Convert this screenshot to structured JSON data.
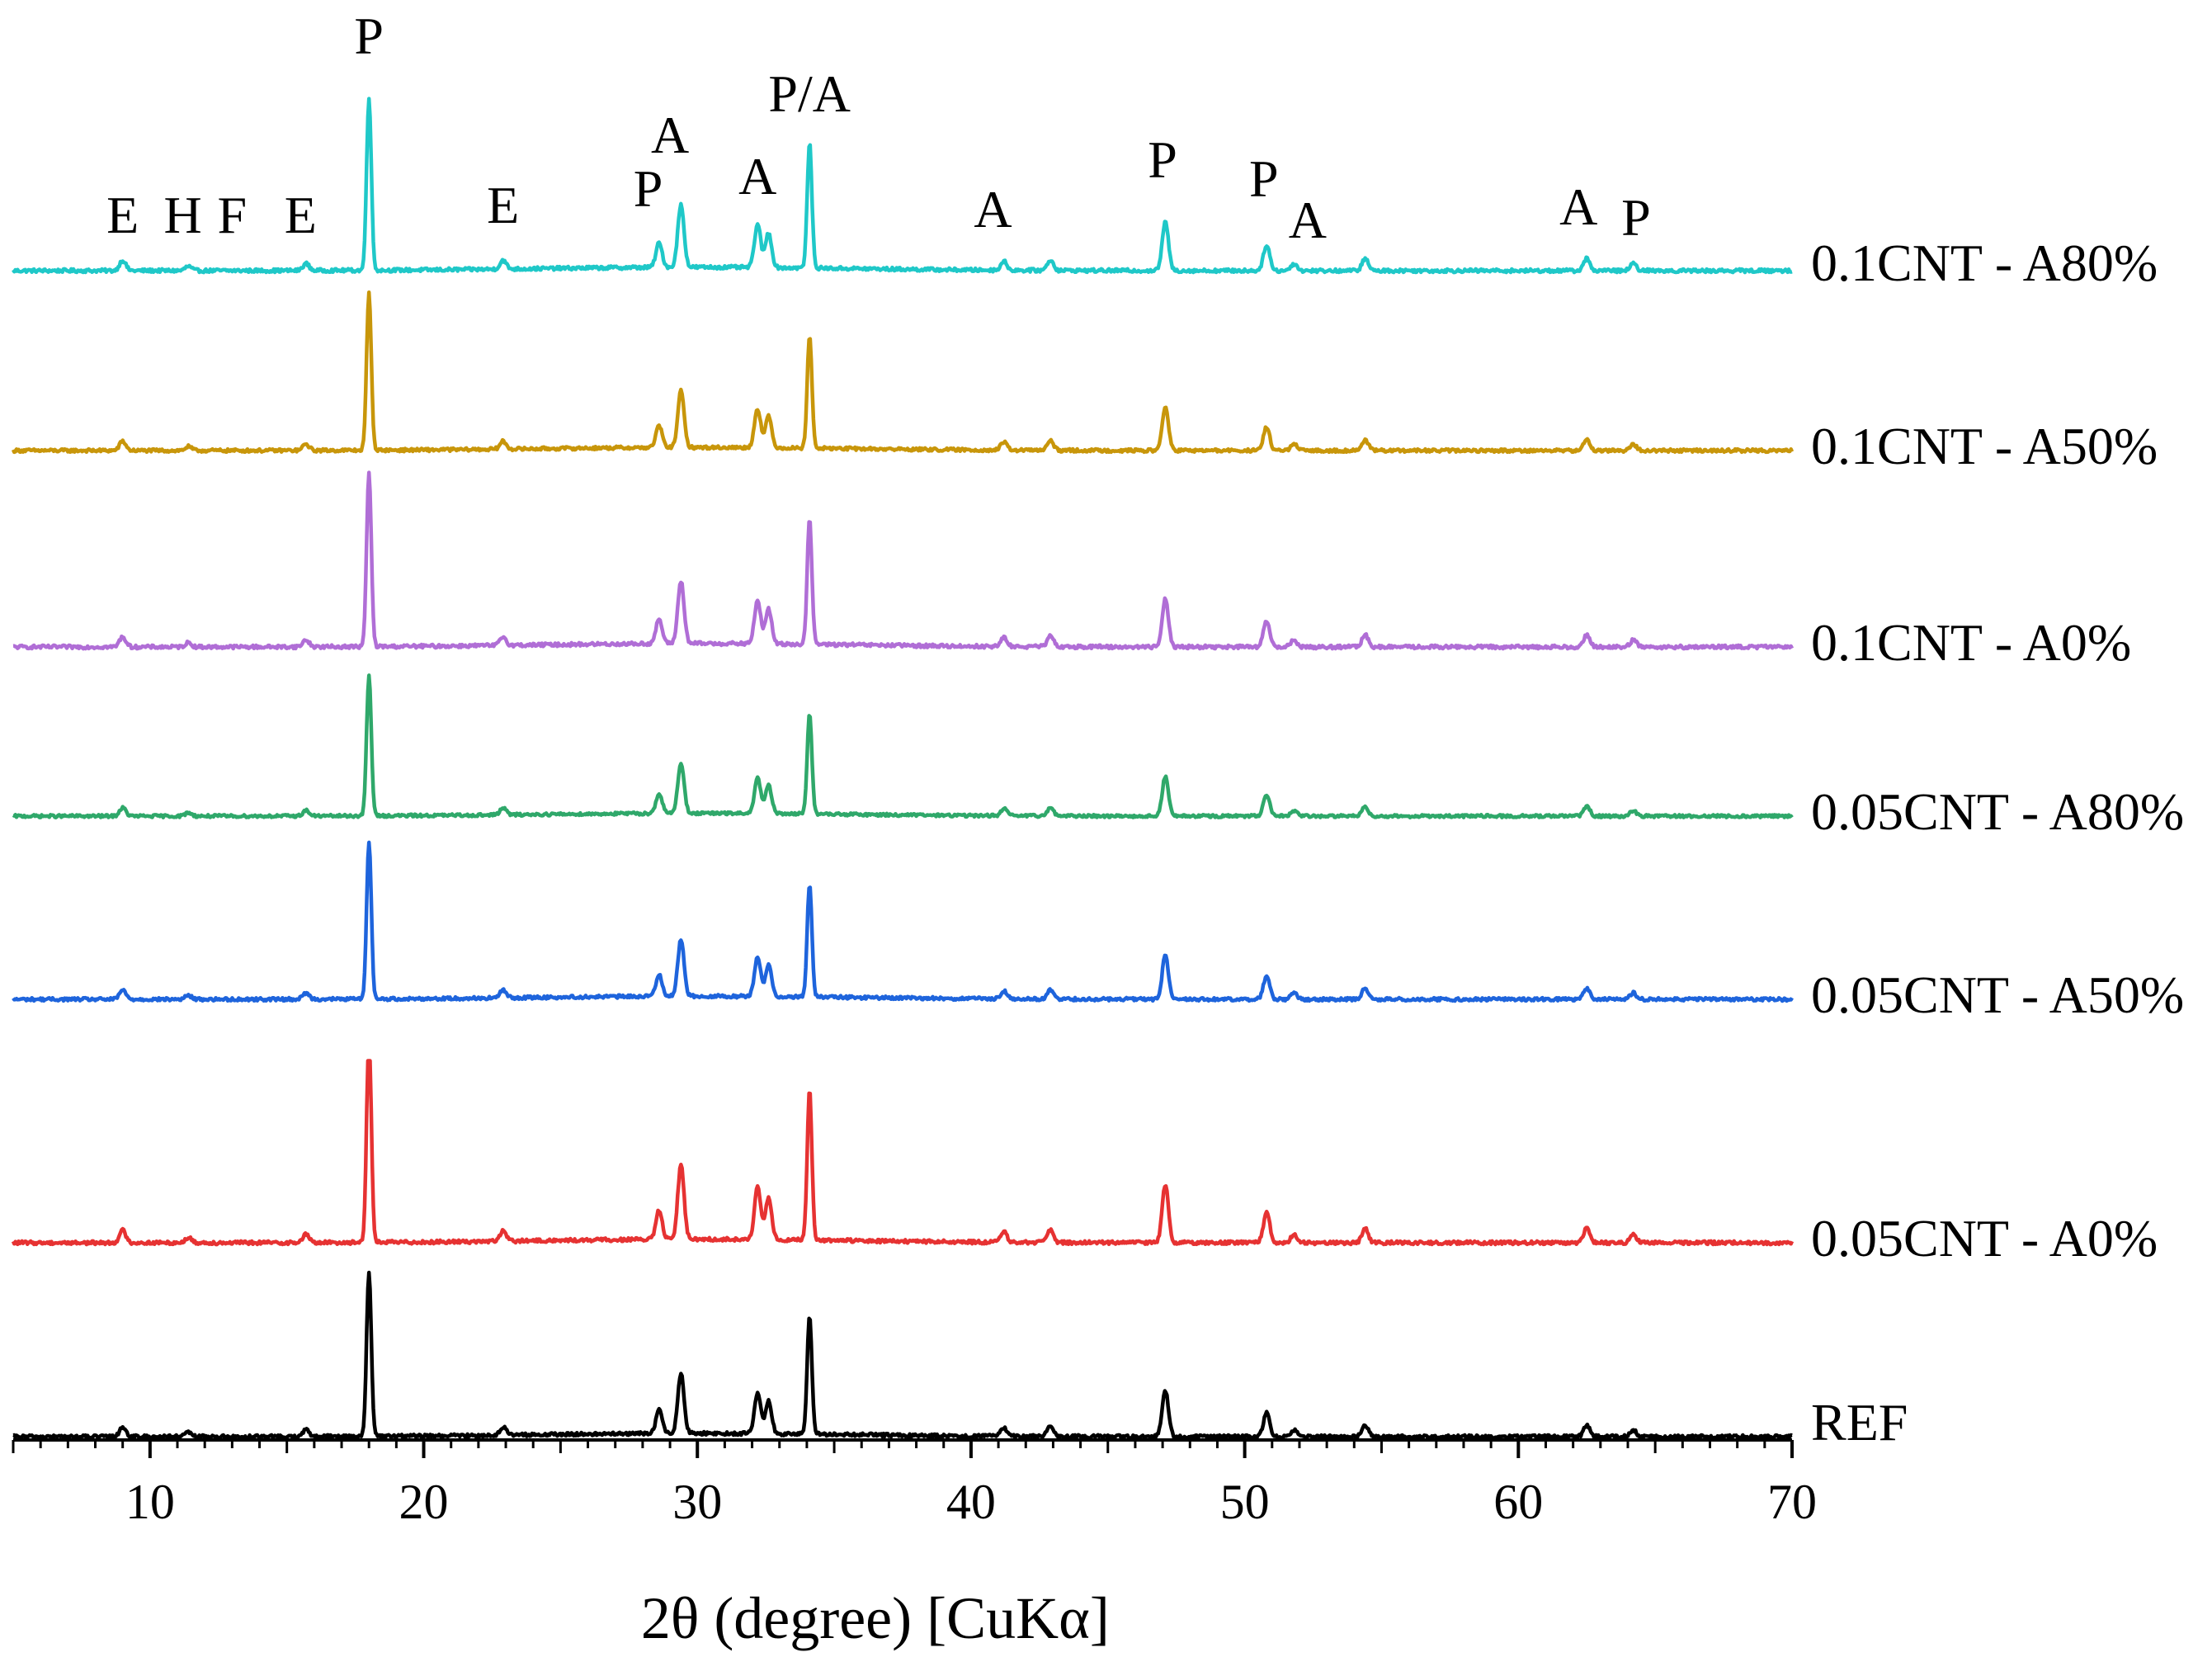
{
  "chart_data": {
    "type": "line",
    "title": "",
    "xlabel": "2θ (degree) [CuKα]",
    "ylabel": "",
    "xlim": [
      5,
      70
    ],
    "xticks": [
      10,
      20,
      30,
      40,
      50,
      60,
      70
    ],
    "grid": false,
    "legend": "inline labels at right end of each trace",
    "colors": {
      "0.1CNT - A80%": "#1fc8c8",
      "0.1CNT - A50%": "#c8960a",
      "0.1CNT - A0%": "#b06ed6",
      "0.05CNT - A80%": "#2fa86a",
      "0.05CNT - A50%": "#1e64dc",
      "0.05CNT - A0%": "#e63232",
      "REF": "#000000"
    },
    "peaks": [
      {
        "x": 9.0,
        "h": 0.06
      },
      {
        "x": 11.4,
        "h": 0.025
      },
      {
        "x": 15.7,
        "h": 0.04
      },
      {
        "x": 18.0,
        "h": 1.0
      },
      {
        "x": 22.9,
        "h": 0.05
      },
      {
        "x": 28.6,
        "h": 0.14
      },
      {
        "x": 29.4,
        "h": 0.36
      },
      {
        "x": 32.2,
        "h": 0.25
      },
      {
        "x": 32.6,
        "h": 0.2
      },
      {
        "x": 34.1,
        "h": 0.72
      },
      {
        "x": 41.2,
        "h": 0.05
      },
      {
        "x": 42.9,
        "h": 0.06
      },
      {
        "x": 47.1,
        "h": 0.28
      },
      {
        "x": 50.8,
        "h": 0.15
      },
      {
        "x": 51.8,
        "h": 0.04
      },
      {
        "x": 54.4,
        "h": 0.07
      },
      {
        "x": 62.5,
        "h": 0.07
      },
      {
        "x": 64.2,
        "h": 0.04
      }
    ],
    "series": [
      {
        "name": "0.1CNT - A80%",
        "peak_scale": 1.0
      },
      {
        "name": "0.1CNT - A50%",
        "peak_scale": 1.0
      },
      {
        "name": "0.1CNT - A0%",
        "peak_scale": 1.0
      },
      {
        "name": "0.05CNT - A80%",
        "peak_scale": 1.0
      },
      {
        "name": "0.05CNT - A50%",
        "peak_scale": 1.0
      },
      {
        "name": "0.05CNT - A0%",
        "peak_scale": 1.2
      },
      {
        "name": "REF",
        "peak_scale": 1.0
      }
    ],
    "phase_labels": [
      {
        "x": 9.0,
        "text": "E"
      },
      {
        "x": 11.2,
        "text": "H"
      },
      {
        "x": 13.0,
        "text": "F"
      },
      {
        "x": 15.5,
        "text": "E"
      },
      {
        "x": 18.0,
        "text": "P"
      },
      {
        "x": 22.9,
        "text": "E"
      },
      {
        "x": 28.2,
        "text": "P"
      },
      {
        "x": 29.0,
        "text": "A"
      },
      {
        "x": 32.2,
        "text": "A"
      },
      {
        "x": 34.1,
        "text": "P/A"
      },
      {
        "x": 40.8,
        "text": "A"
      },
      {
        "x": 47.0,
        "text": "P"
      },
      {
        "x": 50.7,
        "text": "P"
      },
      {
        "x": 52.3,
        "text": "A"
      },
      {
        "x": 62.2,
        "text": "A"
      },
      {
        "x": 64.3,
        "text": "P"
      }
    ]
  }
}
